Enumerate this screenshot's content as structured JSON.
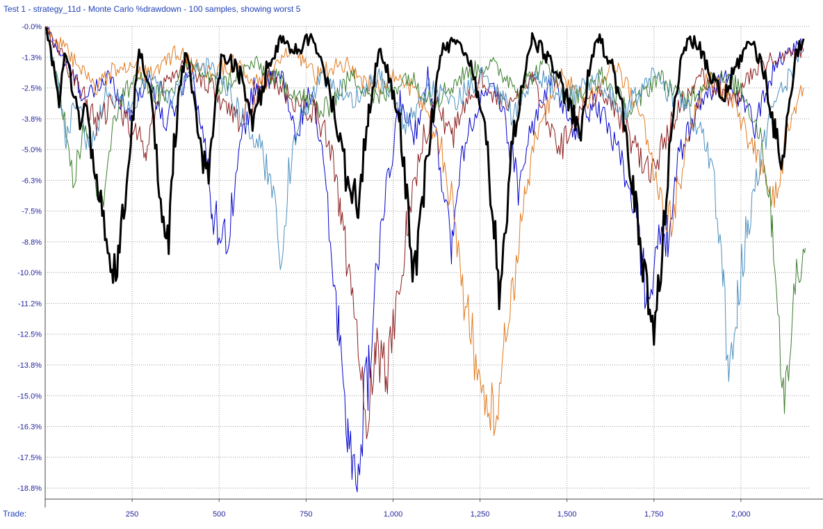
{
  "title": "Test 1 - strategy_11d - Monte Carlo %drawdown - 100 samples, showing worst 5",
  "xaxis_label": "Trade:",
  "chart_data": {
    "type": "line",
    "xlabel": "Trade:",
    "ylabel": "",
    "xlim": [
      0,
      2200
    ],
    "ylim": [
      -19.2,
      0
    ],
    "y_ticks": [
      "-0.0%",
      "-1.3%",
      "-2.5%",
      "-3.8%",
      "-5.0%",
      "-6.3%",
      "-7.5%",
      "-8.8%",
      "-10.0%",
      "-11.2%",
      "-12.5%",
      "-13.8%",
      "-15.0%",
      "-16.3%",
      "-17.5%",
      "-18.8%"
    ],
    "y_tick_values": [
      0,
      -1.25,
      -2.5,
      -3.75,
      -5.0,
      -6.25,
      -7.5,
      -8.75,
      -10.0,
      -11.25,
      -12.5,
      -13.75,
      -15.0,
      -16.25,
      -17.5,
      -18.75
    ],
    "x_ticks": [
      "250",
      "500",
      "750",
      "1,000",
      "1,250",
      "1,500",
      "1,750",
      "2,000"
    ],
    "x_tick_values": [
      250,
      500,
      750,
      1000,
      1250,
      1500,
      1750,
      2000
    ],
    "grid": true,
    "series": [
      {
        "color": "#0000cc",
        "width": 1,
        "points": [
          [
            0,
            0
          ],
          [
            60,
            -1.5
          ],
          [
            120,
            -3.0
          ],
          [
            180,
            -2.0
          ],
          [
            240,
            -3.5
          ],
          [
            300,
            -2.0
          ],
          [
            340,
            -4.0
          ],
          [
            380,
            -3.0
          ],
          [
            420,
            -1.5
          ],
          [
            470,
            -6.0
          ],
          [
            480,
            -7.5
          ],
          [
            520,
            -8.8
          ],
          [
            560,
            -5.0
          ],
          [
            600,
            -2.5
          ],
          [
            680,
            -2.0
          ],
          [
            720,
            -4.5
          ],
          [
            760,
            -2.5
          ],
          [
            800,
            -5.5
          ],
          [
            820,
            -9.0
          ],
          [
            845,
            -12.5
          ],
          [
            870,
            -16.0
          ],
          [
            885,
            -18.8
          ],
          [
            900,
            -17.5
          ],
          [
            930,
            -14.0
          ],
          [
            960,
            -9.0
          ],
          [
            990,
            -6.0
          ],
          [
            1020,
            -3.0
          ],
          [
            1060,
            -4.5
          ],
          [
            1100,
            -2.0
          ],
          [
            1170,
            -9.0
          ],
          [
            1200,
            -5.0
          ],
          [
            1250,
            -3.0
          ],
          [
            1300,
            -2.5
          ],
          [
            1360,
            -6.5
          ],
          [
            1400,
            -4.0
          ],
          [
            1460,
            -2.0
          ],
          [
            1520,
            -4.5
          ],
          [
            1580,
            -3.0
          ],
          [
            1650,
            -5.0
          ],
          [
            1700,
            -8.0
          ],
          [
            1730,
            -11.0
          ],
          [
            1760,
            -9.0
          ],
          [
            1790,
            -8.5
          ],
          [
            1820,
            -5.5
          ],
          [
            1880,
            -3.0
          ],
          [
            1960,
            -2.0
          ],
          [
            2040,
            -4.0
          ],
          [
            2100,
            -1.5
          ],
          [
            2180,
            -0.5
          ]
        ]
      },
      {
        "color": "#8b1a1a",
        "width": 1,
        "points": [
          [
            0,
            0
          ],
          [
            80,
            -2.0
          ],
          [
            150,
            -4.0
          ],
          [
            200,
            -3.0
          ],
          [
            290,
            -5.0
          ],
          [
            330,
            -2.5
          ],
          [
            400,
            -1.5
          ],
          [
            480,
            -2.5
          ],
          [
            560,
            -4.0
          ],
          [
            640,
            -2.0
          ],
          [
            710,
            -3.0
          ],
          [
            780,
            -3.5
          ],
          [
            820,
            -5.0
          ],
          [
            850,
            -7.5
          ],
          [
            880,
            -11.0
          ],
          [
            900,
            -13.5
          ],
          [
            920,
            -16.0
          ],
          [
            950,
            -13.0
          ],
          [
            980,
            -14.0
          ],
          [
            1010,
            -11.5
          ],
          [
            1040,
            -8.0
          ],
          [
            1080,
            -5.0
          ],
          [
            1120,
            -3.0
          ],
          [
            1170,
            -4.5
          ],
          [
            1250,
            -2.0
          ],
          [
            1330,
            -3.5
          ],
          [
            1400,
            -2.0
          ],
          [
            1480,
            -5.0
          ],
          [
            1540,
            -3.5
          ],
          [
            1600,
            -2.5
          ],
          [
            1680,
            -4.5
          ],
          [
            1740,
            -6.0
          ],
          [
            1800,
            -4.0
          ],
          [
            1880,
            -2.0
          ],
          [
            1980,
            -3.0
          ],
          [
            2060,
            -1.5
          ],
          [
            2180,
            -1.0
          ]
        ]
      },
      {
        "color": "#e07a1f",
        "width": 1,
        "points": [
          [
            0,
            0
          ],
          [
            60,
            -1.0
          ],
          [
            140,
            -2.5
          ],
          [
            220,
            -1.5
          ],
          [
            300,
            -2.0
          ],
          [
            380,
            -1.0
          ],
          [
            460,
            -2.0
          ],
          [
            540,
            -1.5
          ],
          [
            620,
            -2.5
          ],
          [
            700,
            -1.0
          ],
          [
            780,
            -2.0
          ],
          [
            860,
            -1.5
          ],
          [
            940,
            -2.5
          ],
          [
            1020,
            -2.0
          ],
          [
            1080,
            -3.0
          ],
          [
            1140,
            -5.0
          ],
          [
            1180,
            -8.0
          ],
          [
            1200,
            -10.5
          ],
          [
            1230,
            -13.0
          ],
          [
            1260,
            -15.0
          ],
          [
            1290,
            -16.0
          ],
          [
            1320,
            -13.0
          ],
          [
            1350,
            -10.0
          ],
          [
            1380,
            -7.0
          ],
          [
            1420,
            -4.0
          ],
          [
            1480,
            -2.0
          ],
          [
            1560,
            -3.0
          ],
          [
            1640,
            -1.5
          ],
          [
            1720,
            -4.0
          ],
          [
            1760,
            -6.5
          ],
          [
            1800,
            -8.0
          ],
          [
            1840,
            -5.0
          ],
          [
            1900,
            -2.0
          ],
          [
            1980,
            -3.0
          ],
          [
            2060,
            -6.0
          ],
          [
            2100,
            -7.0
          ],
          [
            2130,
            -4.5
          ],
          [
            2160,
            -3.0
          ],
          [
            2180,
            -2.5
          ]
        ]
      },
      {
        "color": "#3a7d2c",
        "width": 1,
        "points": [
          [
            0,
            0
          ],
          [
            40,
            -2.5
          ],
          [
            80,
            -6.0
          ],
          [
            120,
            -4.0
          ],
          [
            160,
            -7.5
          ],
          [
            200,
            -3.5
          ],
          [
            260,
            -2.0
          ],
          [
            340,
            -3.0
          ],
          [
            420,
            -1.5
          ],
          [
            500,
            -2.5
          ],
          [
            600,
            -1.5
          ],
          [
            700,
            -2.5
          ],
          [
            800,
            -3.5
          ],
          [
            880,
            -2.0
          ],
          [
            960,
            -3.0
          ],
          [
            1040,
            -2.0
          ],
          [
            1120,
            -3.0
          ],
          [
            1200,
            -2.0
          ],
          [
            1280,
            -1.5
          ],
          [
            1360,
            -2.5
          ],
          [
            1440,
            -1.5
          ],
          [
            1520,
            -3.0
          ],
          [
            1600,
            -2.0
          ],
          [
            1680,
            -3.5
          ],
          [
            1760,
            -2.0
          ],
          [
            1840,
            -3.0
          ],
          [
            1920,
            -2.0
          ],
          [
            2000,
            -2.5
          ],
          [
            2060,
            -4.5
          ],
          [
            2090,
            -8.0
          ],
          [
            2110,
            -12.0
          ],
          [
            2125,
            -16.0
          ],
          [
            2140,
            -13.0
          ],
          [
            2160,
            -10.0
          ],
          [
            2175,
            -9.2
          ],
          [
            2185,
            -9.0
          ]
        ]
      },
      {
        "color": "#4a8fc0",
        "width": 1,
        "points": [
          [
            0,
            0
          ],
          [
            30,
            -2.0
          ],
          [
            60,
            -4.5
          ],
          [
            90,
            -3.0
          ],
          [
            130,
            -5.0
          ],
          [
            180,
            -2.5
          ],
          [
            240,
            -3.5
          ],
          [
            300,
            -2.0
          ],
          [
            360,
            -3.0
          ],
          [
            420,
            -2.0
          ],
          [
            480,
            -1.5
          ],
          [
            540,
            -3.0
          ],
          [
            620,
            -5.0
          ],
          [
            660,
            -7.0
          ],
          [
            680,
            -9.5
          ],
          [
            700,
            -6.0
          ],
          [
            740,
            -3.5
          ],
          [
            800,
            -2.0
          ],
          [
            880,
            -3.0
          ],
          [
            960,
            -2.0
          ],
          [
            1040,
            -4.0
          ],
          [
            1100,
            -2.5
          ],
          [
            1180,
            -3.0
          ],
          [
            1260,
            -2.0
          ],
          [
            1340,
            -3.5
          ],
          [
            1420,
            -2.0
          ],
          [
            1500,
            -3.0
          ],
          [
            1580,
            -2.0
          ],
          [
            1660,
            -3.5
          ],
          [
            1740,
            -2.0
          ],
          [
            1820,
            -3.0
          ],
          [
            1880,
            -4.0
          ],
          [
            1920,
            -6.0
          ],
          [
            1950,
            -10.5
          ],
          [
            1965,
            -14.8
          ],
          [
            1990,
            -11.0
          ],
          [
            2020,
            -8.0
          ],
          [
            2060,
            -5.0
          ],
          [
            2100,
            -3.0
          ],
          [
            2140,
            -2.0
          ],
          [
            2180,
            -1.0
          ]
        ]
      },
      {
        "color": "#000000",
        "width": 3,
        "points": [
          [
            0,
            0
          ],
          [
            20,
            -1.5
          ],
          [
            40,
            -3.0
          ],
          [
            60,
            -1.0
          ],
          [
            80,
            -2.5
          ],
          [
            100,
            -4.0
          ],
          [
            120,
            -3.0
          ],
          [
            140,
            -6.0
          ],
          [
            160,
            -7.5
          ],
          [
            180,
            -9.5
          ],
          [
            195,
            -10.5
          ],
          [
            210,
            -9.5
          ],
          [
            230,
            -7.0
          ],
          [
            250,
            -4.0
          ],
          [
            270,
            -1.0
          ],
          [
            300,
            -2.5
          ],
          [
            320,
            -5.0
          ],
          [
            340,
            -8.0
          ],
          [
            355,
            -8.5
          ],
          [
            370,
            -5.0
          ],
          [
            390,
            -2.0
          ],
          [
            410,
            -1.0
          ],
          [
            430,
            -3.5
          ],
          [
            450,
            -5.5
          ],
          [
            470,
            -6.0
          ],
          [
            490,
            -3.0
          ],
          [
            510,
            -1.0
          ],
          [
            560,
            -2.0
          ],
          [
            600,
            -4.0
          ],
          [
            640,
            -1.5
          ],
          [
            680,
            -0.5
          ],
          [
            720,
            -1.0
          ],
          [
            760,
            -0.5
          ],
          [
            800,
            -1.5
          ],
          [
            840,
            -4.0
          ],
          [
            870,
            -6.5
          ],
          [
            900,
            -7.0
          ],
          [
            930,
            -3.5
          ],
          [
            960,
            -1.0
          ],
          [
            990,
            -2.0
          ],
          [
            1020,
            -4.0
          ],
          [
            1040,
            -7.0
          ],
          [
            1060,
            -10.0
          ],
          [
            1080,
            -8.0
          ],
          [
            1100,
            -5.0
          ],
          [
            1120,
            -3.0
          ],
          [
            1140,
            -1.0
          ],
          [
            1180,
            -0.5
          ],
          [
            1220,
            -1.5
          ],
          [
            1260,
            -3.5
          ],
          [
            1290,
            -8.0
          ],
          [
            1305,
            -11.0
          ],
          [
            1320,
            -9.0
          ],
          [
            1340,
            -5.0
          ],
          [
            1370,
            -2.5
          ],
          [
            1400,
            -0.5
          ],
          [
            1460,
            -1.5
          ],
          [
            1500,
            -3.0
          ],
          [
            1540,
            -4.5
          ],
          [
            1560,
            -2.0
          ],
          [
            1590,
            -0.5
          ],
          [
            1630,
            -1.5
          ],
          [
            1660,
            -3.5
          ],
          [
            1690,
            -6.5
          ],
          [
            1710,
            -9.0
          ],
          [
            1730,
            -11.0
          ],
          [
            1750,
            -12.5
          ],
          [
            1770,
            -10.0
          ],
          [
            1790,
            -6.0
          ],
          [
            1810,
            -3.0
          ],
          [
            1830,
            -1.0
          ],
          [
            1870,
            -0.5
          ],
          [
            1910,
            -2.0
          ],
          [
            1950,
            -3.0
          ],
          [
            1990,
            -1.5
          ],
          [
            2030,
            -0.5
          ],
          [
            2070,
            -2.0
          ],
          [
            2100,
            -4.5
          ],
          [
            2120,
            -5.5
          ],
          [
            2140,
            -3.0
          ],
          [
            2160,
            -1.0
          ],
          [
            2180,
            -0.5
          ]
        ]
      }
    ]
  }
}
